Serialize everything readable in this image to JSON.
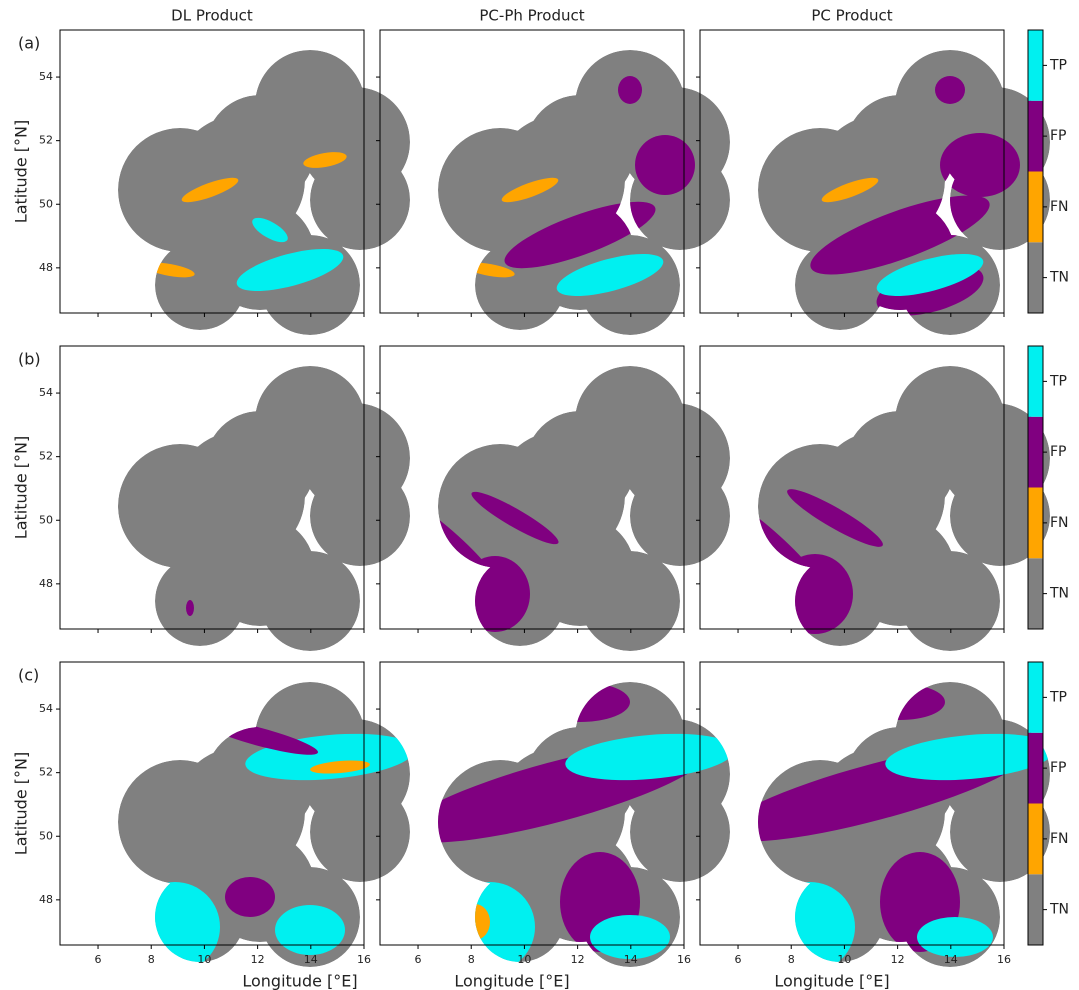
{
  "chart_data": {
    "type": "categorical_map",
    "columns": [
      "DL Product",
      "PC-Ph Product",
      "PC Product"
    ],
    "rows": [
      "(a)",
      "(b)",
      "(c)"
    ],
    "x_label": "Longitude [°E]",
    "y_label": "Latitude [°N]",
    "xlim": [
      4.57,
      16
    ],
    "xticks": [
      6,
      8,
      10,
      12,
      14,
      16
    ],
    "ylim": [
      46.58,
      55.48
    ],
    "yticks": [
      48,
      50,
      52,
      54
    ],
    "colorbar": {
      "categories": [
        "TN",
        "FN",
        "FP",
        "TP"
      ],
      "colors": [
        "#808080",
        "#ffa500",
        "#800080",
        "#00f0f0"
      ]
    }
  }
}
